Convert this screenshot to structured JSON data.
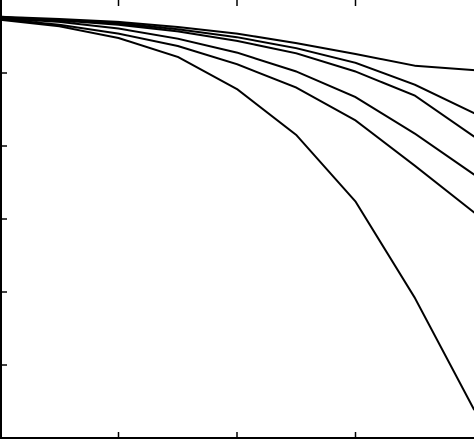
{
  "chart_data": {
    "type": "line",
    "title": "",
    "xlabel": "",
    "ylabel": "",
    "grid": false,
    "legend": "none",
    "line_color": "#000000",
    "xlim": [
      0,
      4
    ],
    "ylim": [
      0,
      6
    ],
    "x_ticks": [
      1,
      2,
      3
    ],
    "y_ticks": [
      1,
      2,
      3,
      4,
      5
    ],
    "x": [
      0,
      0.5,
      1,
      1.5,
      2,
      2.5,
      3,
      3.5,
      4
    ],
    "series": [
      {
        "values": [
          5.77,
          5.74,
          5.7,
          5.63,
          5.54,
          5.41,
          5.26,
          5.1,
          5.04
        ]
      },
      {
        "values": [
          5.77,
          5.73,
          5.68,
          5.6,
          5.49,
          5.34,
          5.14,
          4.84,
          4.45
        ]
      },
      {
        "values": [
          5.76,
          5.72,
          5.66,
          5.57,
          5.44,
          5.27,
          5.02,
          4.69,
          4.13
        ]
      },
      {
        "values": [
          5.75,
          5.7,
          5.61,
          5.47,
          5.28,
          5.02,
          4.67,
          4.17,
          3.61
        ]
      },
      {
        "values": [
          5.74,
          5.66,
          5.54,
          5.37,
          5.12,
          4.8,
          4.35,
          3.73,
          3.09
        ]
      },
      {
        "values": [
          5.73,
          5.64,
          5.48,
          5.22,
          4.78,
          4.15,
          3.24,
          1.92,
          0.39
        ]
      }
    ]
  }
}
